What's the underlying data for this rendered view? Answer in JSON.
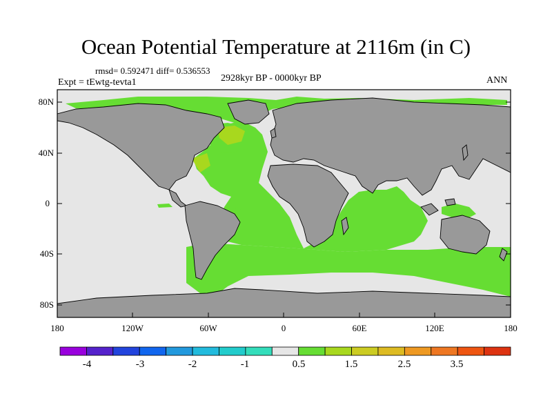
{
  "title": "Ocean Potential Temperature at 2116m (in C)",
  "stats": "rmsd= 0.592471 diff= 0.536553",
  "experiment": "Expt = tEwtg-tevta1",
  "period": "2928kyr BP - 0000kyr BP",
  "season": "ANN",
  "map": {
    "lat_ticks": [
      "80N",
      "40N",
      "0",
      "40S",
      "80S"
    ],
    "lon_ticks": [
      "180",
      "120W",
      "60W",
      "0",
      "60E",
      "120E",
      "180"
    ],
    "colors": {
      "land": "#999999",
      "near_zero": "#e6e6e6",
      "warm_0_5": "#66dd33",
      "warm_1": "#a8d81e",
      "cool_minus1": "#33ddcc",
      "frame": "#000000"
    }
  },
  "colorbar": {
    "colors": [
      "#9900dd",
      "#5522cc",
      "#2244dd",
      "#1166ee",
      "#2299dd",
      "#22bbdd",
      "#22cccc",
      "#33ddbb",
      "#e6e6e6",
      "#66dd33",
      "#a8d81e",
      "#cccc22",
      "#ddbb22",
      "#ee9922",
      "#ee7722",
      "#ee5511",
      "#dd3311"
    ],
    "labels": [
      "-4",
      "-3",
      "-2",
      "-1",
      "0.5",
      "1.5",
      "2.5",
      "3.5"
    ]
  }
}
